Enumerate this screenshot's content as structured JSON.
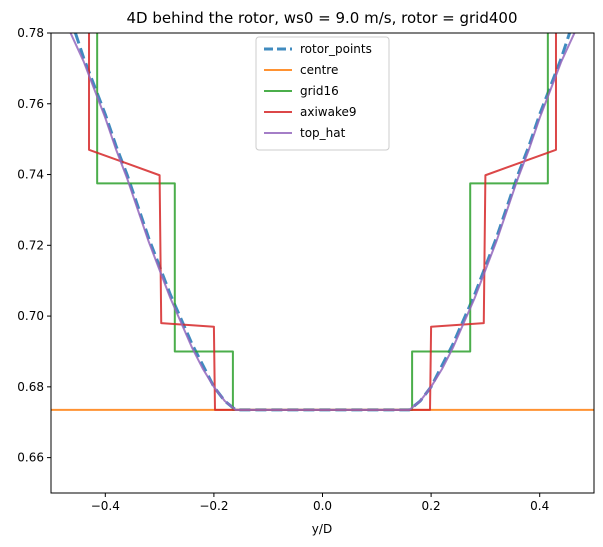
{
  "chart_data": {
    "type": "line",
    "title": "4D behind the rotor, ws0 = 9.0 m/s, rotor = grid400",
    "xlabel": "y/D",
    "ylabel": "",
    "xlim": [
      -0.5,
      0.5
    ],
    "ylim": [
      0.65,
      0.78
    ],
    "x_ticks": [
      -0.4,
      -0.2,
      0.0,
      0.2,
      0.4
    ],
    "x_tick_labels": [
      "−0.4",
      "−0.2",
      "0.0",
      "0.2",
      "0.4"
    ],
    "y_ticks": [
      0.66,
      0.68,
      0.7,
      0.72,
      0.74,
      0.76,
      0.78
    ],
    "y_tick_labels": [
      "0.66",
      "0.68",
      "0.70",
      "0.72",
      "0.74",
      "0.76",
      "0.78"
    ],
    "grid": false,
    "legend_position": "top-center",
    "series": [
      {
        "name": "rotor_points",
        "color": "#1f77b4",
        "style": "dashed",
        "x": [
          -0.455,
          -0.44,
          -0.42,
          -0.4,
          -0.38,
          -0.36,
          -0.34,
          -0.32,
          -0.3,
          -0.28,
          -0.26,
          -0.24,
          -0.22,
          -0.2,
          -0.18,
          -0.16,
          0.16,
          0.18,
          0.2,
          0.22,
          0.24,
          0.26,
          0.28,
          0.3,
          0.32,
          0.34,
          0.36,
          0.38,
          0.4,
          0.42,
          0.44,
          0.455
        ],
        "y": [
          0.78,
          0.773,
          0.765,
          0.757,
          0.748,
          0.74,
          0.731,
          0.722,
          0.714,
          0.706,
          0.699,
          0.692,
          0.686,
          0.68,
          0.676,
          0.6735,
          0.6735,
          0.676,
          0.68,
          0.686,
          0.692,
          0.699,
          0.706,
          0.714,
          0.722,
          0.731,
          0.74,
          0.748,
          0.757,
          0.765,
          0.773,
          0.78
        ]
      },
      {
        "name": "centre",
        "color": "#ff7f0e",
        "style": "solid",
        "x": [
          -0.5,
          0.5
        ],
        "y": [
          0.6735,
          0.6735
        ]
      },
      {
        "name": "grid16",
        "color": "#2ca02c",
        "style": "solid",
        "x": [
          -0.415,
          -0.415,
          -0.272,
          -0.272,
          -0.165,
          -0.165,
          0.165,
          0.165,
          0.272,
          0.272,
          0.415,
          0.415
        ],
        "y": [
          0.78,
          0.7375,
          0.7375,
          0.69,
          0.69,
          0.6735,
          0.6735,
          0.69,
          0.69,
          0.7375,
          0.7375,
          0.78
        ]
      },
      {
        "name": "axiwake9",
        "color": "#d62728",
        "style": "solid",
        "x": [
          -0.43,
          -0.43,
          -0.3,
          -0.297,
          -0.2,
          -0.198,
          0.198,
          0.2,
          0.297,
          0.3,
          0.43,
          0.43
        ],
        "y": [
          0.78,
          0.747,
          0.7398,
          0.698,
          0.697,
          0.6735,
          0.6735,
          0.697,
          0.698,
          0.7398,
          0.747,
          0.78
        ]
      },
      {
        "name": "top_hat",
        "color": "#9467bd",
        "style": "solid",
        "x": [
          -0.47,
          -0.44,
          -0.42,
          -0.4,
          -0.38,
          -0.36,
          -0.34,
          -0.32,
          -0.3,
          -0.28,
          -0.26,
          -0.24,
          -0.22,
          -0.2,
          -0.18,
          -0.16,
          0.16,
          0.18,
          0.2,
          0.22,
          0.24,
          0.26,
          0.28,
          0.3,
          0.32,
          0.34,
          0.36,
          0.38,
          0.4,
          0.42,
          0.44,
          0.47
        ],
        "y": [
          0.782,
          0.772,
          0.764,
          0.756,
          0.747,
          0.739,
          0.73,
          0.721,
          0.713,
          0.705,
          0.698,
          0.691,
          0.685,
          0.68,
          0.676,
          0.6735,
          0.6735,
          0.676,
          0.68,
          0.685,
          0.691,
          0.698,
          0.705,
          0.713,
          0.721,
          0.73,
          0.739,
          0.747,
          0.756,
          0.764,
          0.772,
          0.782
        ]
      }
    ]
  }
}
